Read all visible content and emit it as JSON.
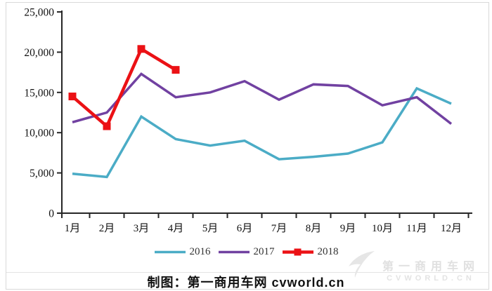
{
  "chart_data": {
    "type": "line",
    "categories": [
      "1月",
      "2月",
      "3月",
      "4月",
      "5月",
      "6月",
      "7月",
      "8月",
      "9月",
      "10月",
      "11月",
      "12月"
    ],
    "series": [
      {
        "name": "2016",
        "color": "#4BACC6",
        "marker": "none",
        "values": [
          4900,
          4500,
          12000,
          9200,
          8400,
          9000,
          6700,
          7000,
          7400,
          8800,
          15500,
          13600
        ]
      },
      {
        "name": "2017",
        "color": "#7141A1",
        "marker": "none",
        "values": [
          11300,
          12500,
          17300,
          14400,
          15000,
          16400,
          14100,
          16000,
          15800,
          13400,
          14400,
          11100
        ]
      },
      {
        "name": "2018",
        "color": "#EB1115",
        "marker": "square",
        "values": [
          14500,
          10800,
          20400,
          17800
        ]
      }
    ],
    "xlabel": "",
    "ylabel": "",
    "ylim": [
      0,
      25000
    ],
    "y_tick_labels": [
      "0",
      "5,000",
      "10,000",
      "15,000",
      "20,000",
      "25,000"
    ],
    "grid": false,
    "legend_position": "bottom"
  },
  "caption": {
    "text": "制图：第一商用车网 cvworld.cn"
  },
  "watermark": {
    "line1": "第一商用车网",
    "line2": "CVWORLD.CN"
  }
}
